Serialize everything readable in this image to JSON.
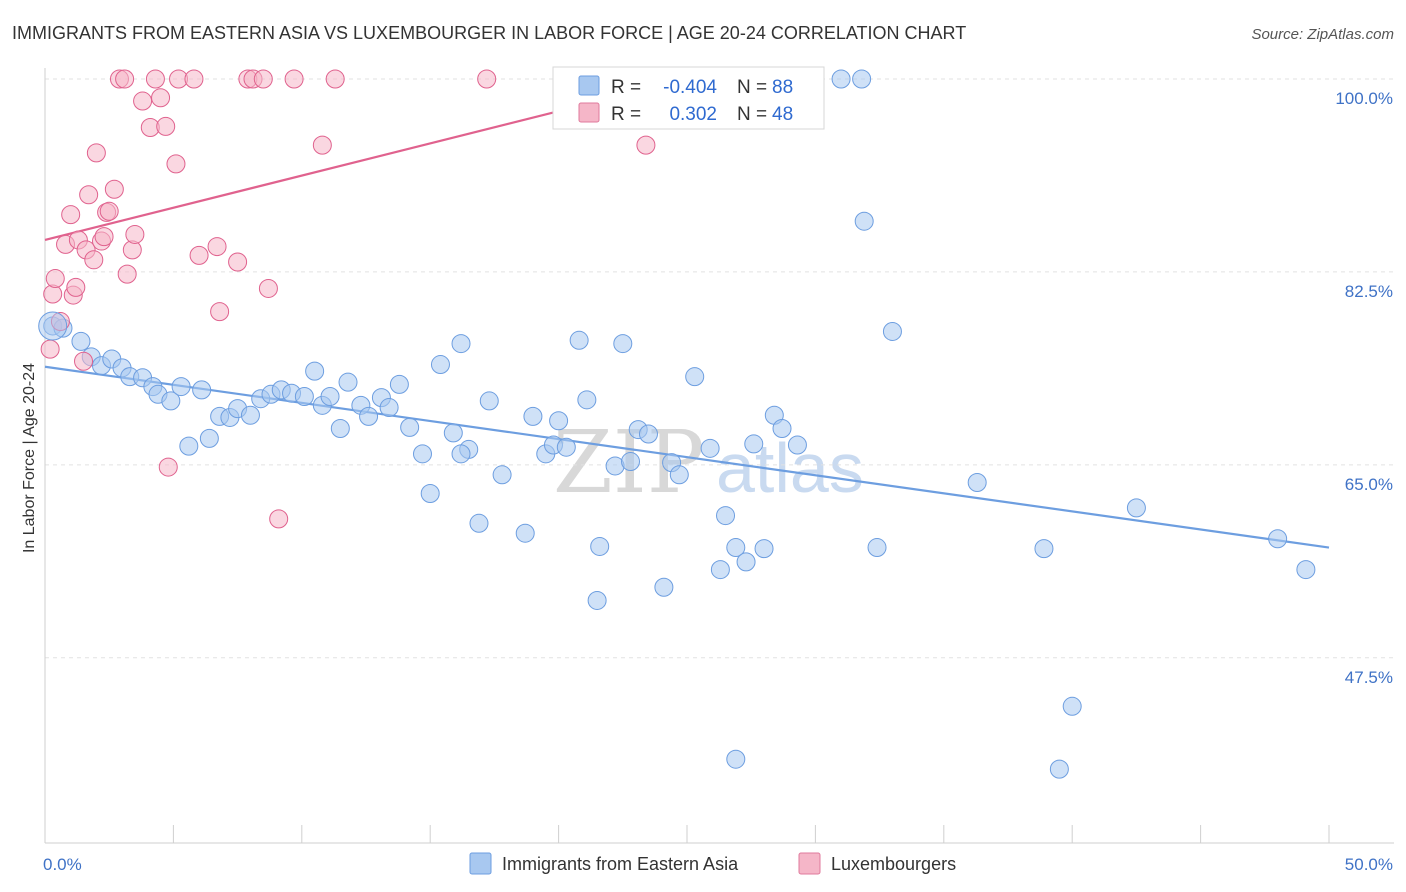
{
  "title": "IMMIGRANTS FROM EASTERN ASIA VS LUXEMBOURGER IN LABOR FORCE | AGE 20-24 CORRELATION CHART",
  "source": "Source: ZipAtlas.com",
  "watermark": {
    "zip": "ZIP",
    "atlas": "atlas"
  },
  "stats": [
    {
      "r_label": "R =",
      "r_value": "-0.404",
      "n_label": "N =",
      "n_value": "88",
      "color": "#a8c8f0"
    },
    {
      "r_label": "R =",
      "r_value": "0.302",
      "n_label": "N =",
      "n_value": "48",
      "color": "#f5b6c8"
    }
  ],
  "legend": [
    {
      "label": "Immigrants from Eastern Asia",
      "color": "#a8c8f0"
    },
    {
      "label": "Luxembourgers",
      "color": "#f5b6c8"
    }
  ],
  "chart_data": {
    "type": "scatter",
    "title": "IMMIGRANTS FROM EASTERN ASIA VS LUXEMBOURGER IN LABOR FORCE | AGE 20-24 CORRELATION CHART",
    "xlabel": "",
    "ylabel": "In Labor Force | Age 20-24",
    "xlim": [
      0,
      50
    ],
    "ylim": [
      30.7,
      100.0
    ],
    "x_tick_labels": [
      {
        "value": 0,
        "label": "0.0%"
      },
      {
        "value": 50,
        "label": "50.0%"
      }
    ],
    "y_tick_labels": [
      {
        "value": 100.0,
        "label": "100.0%"
      },
      {
        "value": 82.5,
        "label": "82.5%"
      },
      {
        "value": 65.0,
        "label": "65.0%"
      },
      {
        "value": 47.5,
        "label": "47.5%"
      }
    ],
    "grid": true,
    "legend_position": "bottom-center",
    "series": [
      {
        "name": "Immigrants from Eastern Asia",
        "color": "#6d9ee0",
        "fill": "#a8c8f0",
        "trend": [
          [
            0,
            73.9
          ],
          [
            50,
            57.5
          ]
        ],
        "points": [
          [
            0.3,
            77.6
          ],
          [
            0.7,
            77.4
          ],
          [
            1.4,
            76.2
          ],
          [
            1.8,
            74.8
          ],
          [
            2.2,
            74.0
          ],
          [
            2.6,
            74.6
          ],
          [
            3.0,
            73.8
          ],
          [
            3.3,
            73.0
          ],
          [
            3.8,
            72.9
          ],
          [
            4.2,
            72.1
          ],
          [
            4.4,
            71.4
          ],
          [
            4.9,
            70.8
          ],
          [
            5.3,
            72.1
          ],
          [
            5.6,
            66.7
          ],
          [
            6.1,
            71.8
          ],
          [
            6.4,
            67.4
          ],
          [
            6.8,
            69.4
          ],
          [
            7.2,
            69.3
          ],
          [
            7.5,
            70.1
          ],
          [
            8.0,
            69.5
          ],
          [
            8.4,
            71.0
          ],
          [
            8.8,
            71.4
          ],
          [
            9.2,
            71.8
          ],
          [
            9.6,
            71.5
          ],
          [
            10.1,
            71.2
          ],
          [
            10.5,
            73.5
          ],
          [
            10.8,
            70.4
          ],
          [
            11.1,
            71.2
          ],
          [
            11.5,
            68.3
          ],
          [
            11.8,
            72.5
          ],
          [
            12.3,
            70.4
          ],
          [
            12.6,
            69.4
          ],
          [
            13.1,
            71.1
          ],
          [
            13.4,
            70.2
          ],
          [
            13.8,
            72.3
          ],
          [
            14.2,
            68.4
          ],
          [
            14.7,
            66.0
          ],
          [
            15.0,
            62.4
          ],
          [
            15.4,
            74.1
          ],
          [
            15.9,
            67.9
          ],
          [
            16.2,
            76.0
          ],
          [
            16.5,
            66.4
          ],
          [
            16.9,
            59.7
          ],
          [
            17.3,
            70.8
          ],
          [
            17.8,
            64.1
          ],
          [
            18.7,
            58.8
          ],
          [
            19.0,
            69.4
          ],
          [
            19.5,
            66.0
          ],
          [
            19.8,
            66.8
          ],
          [
            20.0,
            69.0
          ],
          [
            20.3,
            66.6
          ],
          [
            20.8,
            76.3
          ],
          [
            21.1,
            70.9
          ],
          [
            21.6,
            57.6
          ],
          [
            21.5,
            52.7
          ],
          [
            22.2,
            64.9
          ],
          [
            22.5,
            76.0
          ],
          [
            22.8,
            65.3
          ],
          [
            23.1,
            68.2
          ],
          [
            23.5,
            67.8
          ],
          [
            24.1,
            53.9
          ],
          [
            24.4,
            65.2
          ],
          [
            24.7,
            64.1
          ],
          [
            25.3,
            73.0
          ],
          [
            25.9,
            66.5
          ],
          [
            26.3,
            55.5
          ],
          [
            26.5,
            60.4
          ],
          [
            26.9,
            57.5
          ],
          [
            27.3,
            56.2
          ],
          [
            27.6,
            66.9
          ],
          [
            28.0,
            57.4
          ],
          [
            28.4,
            69.5
          ],
          [
            28.7,
            68.3
          ],
          [
            29.3,
            66.8
          ],
          [
            31.0,
            100.0
          ],
          [
            31.8,
            100.0
          ],
          [
            31.9,
            87.1
          ],
          [
            32.4,
            57.5
          ],
          [
            33.0,
            77.1
          ],
          [
            36.3,
            63.4
          ],
          [
            38.9,
            57.4
          ],
          [
            39.5,
            37.4
          ],
          [
            40.0,
            43.1
          ],
          [
            42.5,
            61.1
          ],
          [
            48.0,
            58.3
          ],
          [
            49.1,
            55.5
          ],
          [
            26.9,
            38.3
          ],
          [
            16.2,
            66.0
          ]
        ]
      },
      {
        "name": "Luxembourgers",
        "color": "#e0628e",
        "fill": "#f5b6c8",
        "trend": [
          [
            0,
            85.4
          ],
          [
            25,
            100.0
          ]
        ],
        "points": [
          [
            0.2,
            75.5
          ],
          [
            0.3,
            80.5
          ],
          [
            0.4,
            81.9
          ],
          [
            0.6,
            78.0
          ],
          [
            0.8,
            85.0
          ],
          [
            1.0,
            87.7
          ],
          [
            1.1,
            80.4
          ],
          [
            1.2,
            81.1
          ],
          [
            1.3,
            85.4
          ],
          [
            1.5,
            74.4
          ],
          [
            1.6,
            84.5
          ],
          [
            1.7,
            89.5
          ],
          [
            1.9,
            83.6
          ],
          [
            2.0,
            93.3
          ],
          [
            2.2,
            85.3
          ],
          [
            2.3,
            85.7
          ],
          [
            2.4,
            87.9
          ],
          [
            2.5,
            88.0
          ],
          [
            2.7,
            90.0
          ],
          [
            2.9,
            100.0
          ],
          [
            3.1,
            100.0
          ],
          [
            3.2,
            82.3
          ],
          [
            3.4,
            84.5
          ],
          [
            3.5,
            85.9
          ],
          [
            3.8,
            98.0
          ],
          [
            4.1,
            95.6
          ],
          [
            4.3,
            100.0
          ],
          [
            4.5,
            98.3
          ],
          [
            4.7,
            95.7
          ],
          [
            4.8,
            64.8
          ],
          [
            5.1,
            92.3
          ],
          [
            5.2,
            100.0
          ],
          [
            5.8,
            100.0
          ],
          [
            6.0,
            84.0
          ],
          [
            6.7,
            84.8
          ],
          [
            6.8,
            78.9
          ],
          [
            7.5,
            83.4
          ],
          [
            7.9,
            100.0
          ],
          [
            8.1,
            100.0
          ],
          [
            8.5,
            100.0
          ],
          [
            8.7,
            81.0
          ],
          [
            9.1,
            60.1
          ],
          [
            9.7,
            100.0
          ],
          [
            10.8,
            94.0
          ],
          [
            11.3,
            100.0
          ],
          [
            17.2,
            100.0
          ],
          [
            23.4,
            94.0
          ],
          [
            25.7,
            100.0
          ]
        ]
      }
    ]
  }
}
